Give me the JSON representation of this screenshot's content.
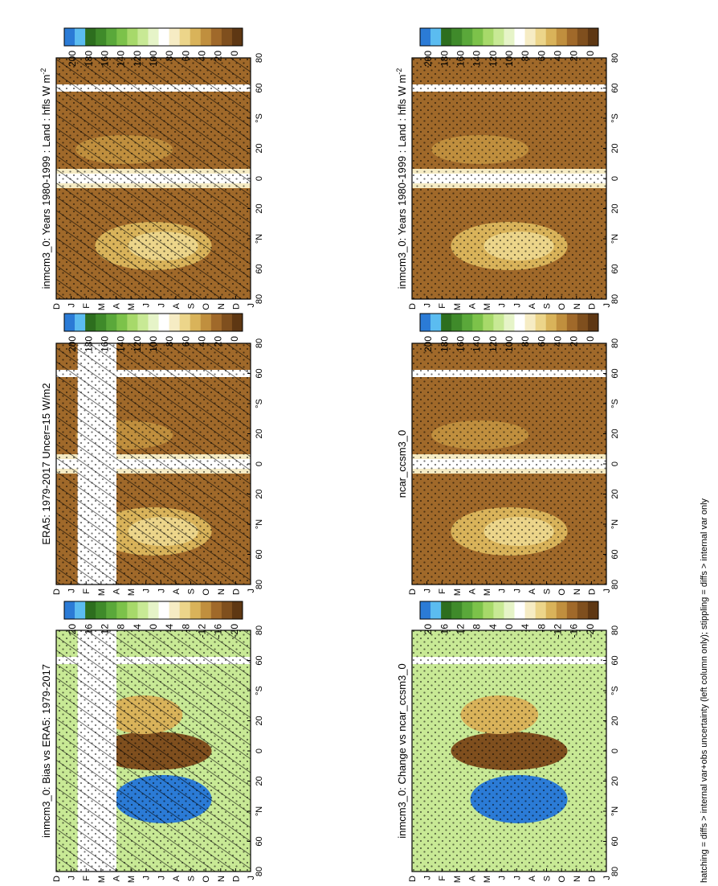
{
  "footnote": "hatching = diffs > internal var+obs uncertainty (left column only); stippling = diffs > internal var only",
  "palettes": {
    "abs": [
      "#2b7bd6",
      "#5bbcf0",
      "#2d6e1e",
      "#3f8a2a",
      "#5aa83a",
      "#7cc24a",
      "#a7d96a",
      "#c8e995",
      "#e6f4c8",
      "#ffffff",
      "#f6ecc4",
      "#ecd58a",
      "#d9b35a",
      "#c08f3e",
      "#a0692a",
      "#7f4f1e",
      "#5e3713"
    ],
    "diff": [
      "#2b7bd6",
      "#5bbcf0",
      "#2d6e1e",
      "#3f8a2a",
      "#5aa83a",
      "#7cc24a",
      "#a7d96a",
      "#c8e995",
      "#e6f4c8",
      "#ffffff",
      "#f6ecc4",
      "#ecd58a",
      "#d9b35a",
      "#c08f3e",
      "#a0692a",
      "#7f4f1e",
      "#5e3713"
    ]
  },
  "chart_data": [
    {
      "type": "heatmap",
      "title": "inmcm3_0: Years 1980-1999 : Land : hfls W m",
      "title_sup": "-2",
      "x_ticks": [
        "D",
        "J",
        "F",
        "M",
        "A",
        "M",
        "J",
        "J",
        "A",
        "S",
        "O",
        "N",
        "D",
        "J"
      ],
      "y_ticks": [
        "80",
        "60",
        "°N",
        "20",
        "0",
        "20",
        "°S",
        "60",
        "80"
      ],
      "colorbar": {
        "labels": [
          "200",
          "180",
          "160",
          "140",
          "120",
          "100",
          "80",
          "60",
          "40",
          "20",
          "0"
        ],
        "palette": "abs"
      },
      "hatching": true,
      "stippling": true,
      "missing_band": null
    },
    {
      "type": "heatmap",
      "title": "inmcm3_0: Years 1980-1999 : Land : hfls W m",
      "title_sup": "-2",
      "x_ticks": [
        "D",
        "J",
        "F",
        "M",
        "A",
        "M",
        "J",
        "J",
        "A",
        "S",
        "O",
        "N",
        "D",
        "J"
      ],
      "y_ticks": [
        "80",
        "60",
        "°N",
        "20",
        "0",
        "20",
        "°S",
        "60",
        "80"
      ],
      "colorbar": {
        "labels": [
          "200",
          "180",
          "160",
          "140",
          "120",
          "100",
          "80",
          "60",
          "40",
          "20",
          "0"
        ],
        "palette": "abs"
      },
      "hatching": false,
      "stippling": true,
      "missing_band": null
    },
    {
      "type": "heatmap",
      "title": "ERA5: 1979-2017 Uncer=15 W/m2",
      "title_sup": "",
      "x_ticks": [
        "D",
        "J",
        "F",
        "M",
        "A",
        "M",
        "J",
        "J",
        "A",
        "S",
        "O",
        "N",
        "D",
        "J"
      ],
      "y_ticks": [
        "80",
        "60",
        "°N",
        "20",
        "0",
        "20",
        "°S",
        "60",
        "80"
      ],
      "colorbar": {
        "labels": [
          "200",
          "180",
          "160",
          "140",
          "120",
          "100",
          "80",
          "60",
          "40",
          "20",
          "0"
        ],
        "palette": "abs"
      },
      "hatching": true,
      "stippling": true,
      "missing_band": [
        "F",
        "A"
      ]
    },
    {
      "type": "heatmap",
      "title": "ncar_ccsm3_0",
      "title_sup": "",
      "x_ticks": [
        "D",
        "J",
        "F",
        "M",
        "A",
        "M",
        "J",
        "J",
        "A",
        "S",
        "O",
        "N",
        "D",
        "J"
      ],
      "y_ticks": [
        "80",
        "60",
        "°N",
        "20",
        "0",
        "20",
        "°S",
        "60",
        "80"
      ],
      "colorbar": {
        "labels": [
          "200",
          "180",
          "160",
          "140",
          "120",
          "100",
          "80",
          "60",
          "40",
          "20",
          "0"
        ],
        "palette": "abs"
      },
      "hatching": false,
      "stippling": true,
      "missing_band": null
    },
    {
      "type": "heatmap",
      "title": "inmcm3_0: Bias vs ERA5: 1979-2017",
      "title_sup": "",
      "x_ticks": [
        "D",
        "J",
        "F",
        "M",
        "A",
        "M",
        "J",
        "J",
        "A",
        "S",
        "O",
        "N",
        "D",
        "J"
      ],
      "y_ticks": [
        "80",
        "60",
        "°N",
        "20",
        "0",
        "20",
        "°S",
        "60",
        "80"
      ],
      "colorbar": {
        "labels": [
          "20",
          "16",
          "12",
          "8",
          "4",
          "0",
          "-4",
          "-8",
          "-12",
          "-16",
          "-20"
        ],
        "palette": "diff"
      },
      "hatching": true,
      "stippling": true,
      "missing_band": [
        "F",
        "A"
      ]
    },
    {
      "type": "heatmap",
      "title": "inmcm3_0: Change vs ncar_ccsm3_0",
      "title_sup": "",
      "x_ticks": [
        "D",
        "J",
        "F",
        "M",
        "A",
        "M",
        "J",
        "J",
        "A",
        "S",
        "O",
        "N",
        "D",
        "J"
      ],
      "y_ticks": [
        "80",
        "60",
        "°N",
        "20",
        "0",
        "20",
        "°S",
        "60",
        "80"
      ],
      "colorbar": {
        "labels": [
          "20",
          "16",
          "12",
          "8",
          "4",
          "0",
          "-4",
          "-8",
          "-12",
          "-16",
          "-20"
        ],
        "palette": "diff"
      },
      "hatching": false,
      "stippling": true,
      "missing_band": null
    }
  ]
}
